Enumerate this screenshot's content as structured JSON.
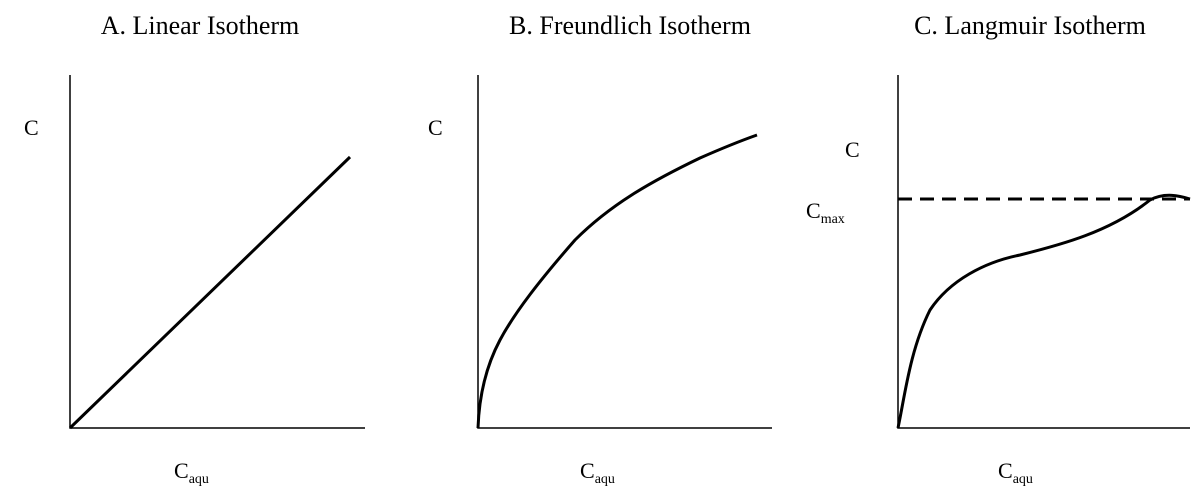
{
  "panels": [
    {
      "title": "A. Linear Isotherm",
      "y_label": "C",
      "x_label": {
        "base": "C",
        "sub": "aqu"
      }
    },
    {
      "title": "B. Freundlich Isotherm",
      "y_label": "C",
      "x_label": {
        "base": "C",
        "sub": "aqu"
      }
    },
    {
      "title": "C. Langmuir Isotherm",
      "y_label": "C",
      "x_label": {
        "base": "C",
        "sub": "aqu"
      },
      "max_label": {
        "base": "C",
        "sub": "max"
      }
    }
  ]
}
